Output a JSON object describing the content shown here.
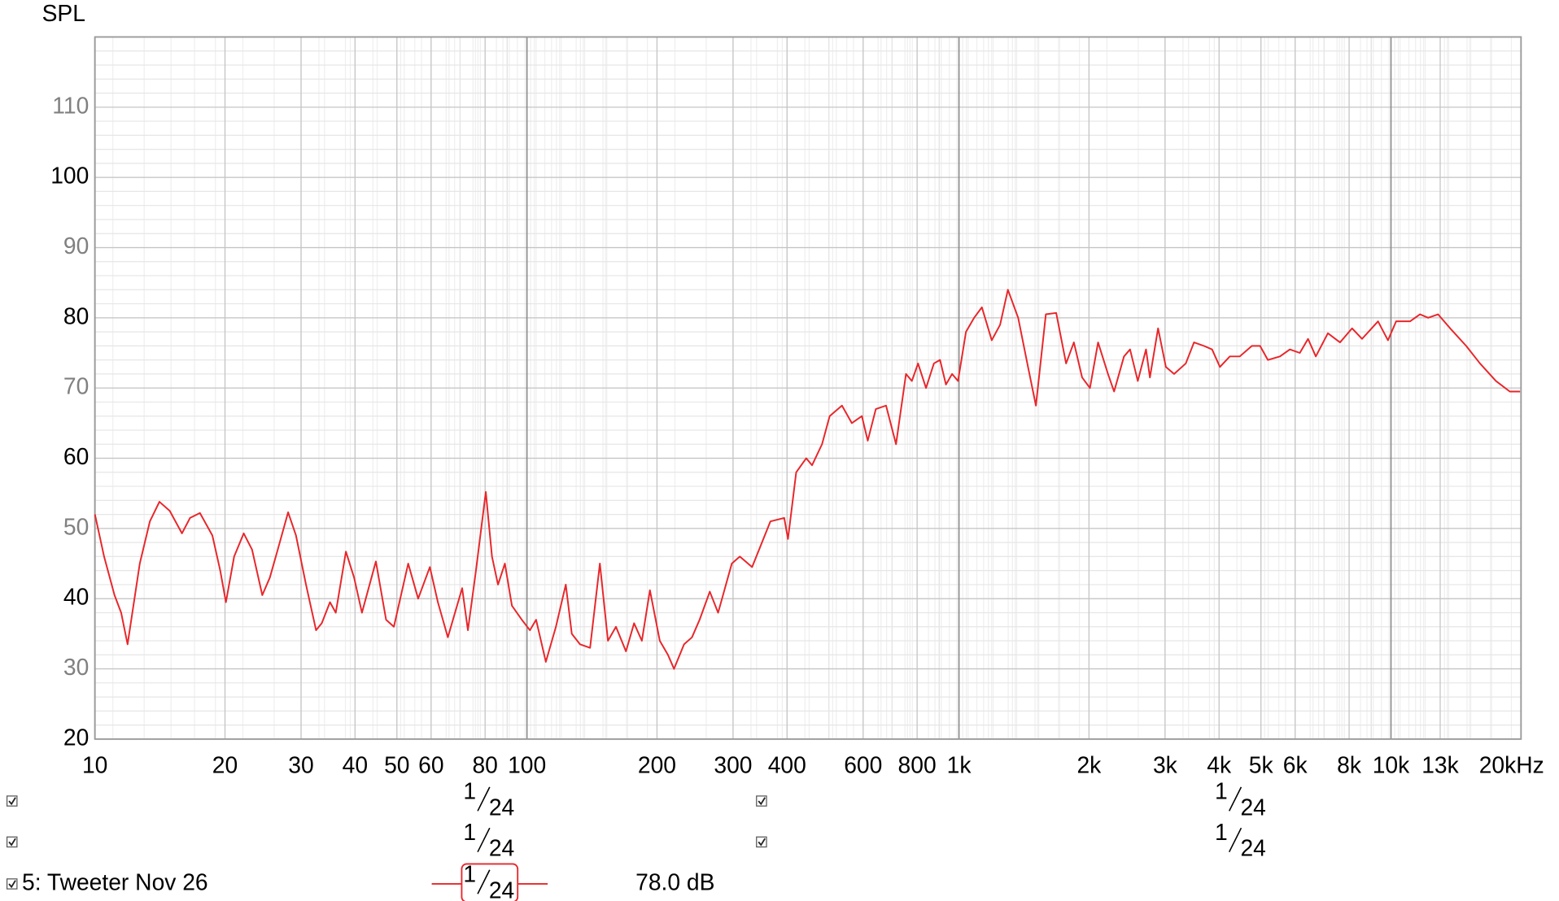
{
  "chart_data": {
    "type": "line",
    "ylabel": "SPL",
    "log_x": true,
    "grid": true,
    "xlim": [
      10,
      20000
    ],
    "ylim": [
      20,
      120
    ],
    "xticks": [
      10,
      20,
      30,
      40,
      50,
      60,
      80,
      100,
      200,
      300,
      400,
      600,
      800,
      {
        "value": 1000,
        "label": "1k"
      },
      {
        "value": 2000,
        "label": "2k"
      },
      {
        "value": 3000,
        "label": "3k"
      },
      {
        "value": 4000,
        "label": "4k"
      },
      {
        "value": 5000,
        "label": "5k"
      },
      {
        "value": 6000,
        "label": "6k"
      },
      {
        "value": 8000,
        "label": "8k"
      },
      {
        "value": 10000,
        "label": "10k"
      },
      {
        "value": 13000,
        "label": "13k"
      },
      {
        "value": 20000,
        "label": "20kHz"
      }
    ],
    "yticks": [
      20,
      30,
      40,
      50,
      60,
      70,
      80,
      90,
      100,
      110
    ],
    "x": [
      10,
      10.5,
      11.1,
      11.5,
      11.9,
      12.7,
      13.4,
      14.1,
      14.9,
      15.9,
      16.6,
      17.5,
      18.7,
      19.5,
      20.1,
      21,
      22.1,
      23.1,
      24.4,
      25.4,
      26.5,
      28,
      29.2,
      30.8,
      32.5,
      33.5,
      35,
      36.1,
      38.1,
      39.8,
      41.5,
      44.7,
      47.2,
      49.2,
      53.1,
      56,
      59.6,
      62.2,
      65.6,
      70.8,
      73,
      76.2,
      80.3,
      83,
      85.7,
      88.9,
      92.3,
      97.3,
      101.6,
      105,
      110.6,
      116.7,
      123,
      127,
      132.7,
      140,
      147.5,
      154,
      160.7,
      169.5,
      177,
      184.5,
      192.6,
      203,
      212,
      219,
      231,
      241,
      251,
      265,
      277,
      298,
      311,
      332,
      366,
      394,
      402,
      420,
      443,
      457,
      482,
      502,
      536,
      565,
      596,
      615,
      642,
      678,
      715,
      754,
      778,
      804,
      839,
      875,
      904,
      933,
      964,
      995,
      1038,
      1084,
      1130,
      1191,
      1245,
      1298,
      1371,
      1445,
      1507,
      1589,
      1679,
      1770,
      1845,
      1928,
      2010,
      2099,
      2213,
      2286,
      2410,
      2489,
      2594,
      2710,
      2767,
      2890,
      3013,
      3148,
      3350,
      3500,
      3690,
      3854,
      4018,
      4236,
      4467,
      4764,
      4977,
      5188,
      5534,
      5834,
      6152,
      6427,
      6699,
      7145,
      7621,
      8128,
      8570,
      9333,
      9840,
      10280,
      11070,
      11670,
      12190,
      12850,
      13710,
      14930,
      16070,
      17500,
      18840,
      19900
    ],
    "series": [
      {
        "name": "5: Tweeter Nov 26",
        "color": "#e8262a",
        "level": "78.0 dB",
        "smoothing": {
          "num": "1",
          "den": "24"
        },
        "values": [
          52,
          46,
          40.5,
          38,
          33.5,
          45,
          51,
          53.8,
          52.5,
          49.3,
          51.5,
          52.2,
          49,
          44,
          39.5,
          46,
          49.3,
          47,
          40.5,
          43,
          47,
          52.3,
          49,
          42,
          35.5,
          36.5,
          39.5,
          38,
          46.7,
          43,
          38,
          45.3,
          37,
          36,
          45,
          40,
          44.5,
          39.5,
          34.5,
          41.5,
          35.5,
          44,
          55.2,
          46,
          42,
          45,
          39,
          37,
          35.5,
          37,
          31,
          36,
          42,
          35,
          33.5,
          33,
          45,
          34,
          36,
          32.5,
          36.5,
          34,
          41.2,
          34,
          32,
          30,
          33.5,
          34.5,
          37,
          41,
          38,
          45,
          46,
          44.5,
          51,
          51.5,
          48.5,
          58,
          60,
          59,
          62,
          66,
          67.5,
          65,
          66,
          62.5,
          67,
          67.5,
          62,
          72,
          71,
          73.5,
          70,
          73.5,
          74,
          70.5,
          72,
          71,
          78,
          80,
          81.5,
          76.8,
          79,
          84,
          80,
          73,
          67.5,
          80.5,
          80.7,
          73.5,
          76.5,
          71.5,
          70,
          76.5,
          72,
          69.5,
          74.5,
          75.5,
          71,
          75.5,
          71.5,
          78.5,
          73,
          72,
          73.5,
          76.5,
          76,
          75.5,
          73,
          74.5,
          74.5,
          76,
          76,
          74,
          74.5,
          75.5,
          75,
          77,
          74.5,
          77.8,
          76.5,
          78.5,
          77,
          79.5,
          76.8,
          79.5,
          79.5,
          80.5,
          80,
          80.5,
          78.5,
          76,
          73.5,
          71,
          69.5,
          69.5
        ]
      }
    ],
    "hidden_traces": [
      {
        "smoothing": {
          "num": "1",
          "den": "24"
        }
      },
      {
        "smoothing": {
          "num": "1",
          "den": "24"
        }
      },
      {
        "smoothing": {
          "num": "1",
          "den": "24"
        }
      },
      {
        "smoothing": {
          "num": "1",
          "den": "24"
        }
      }
    ]
  }
}
